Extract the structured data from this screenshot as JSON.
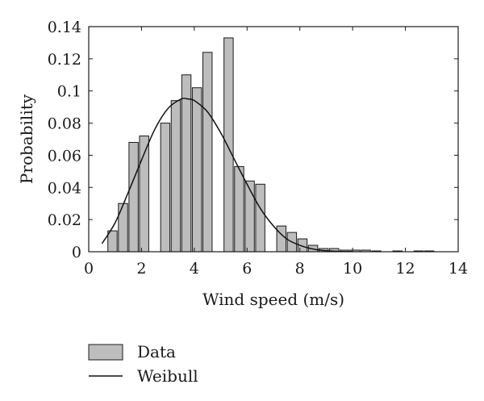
{
  "chart_data": {
    "type": "bar",
    "xlabel": "Wind speed (m/s)",
    "ylabel": "Probability",
    "xlim": [
      0,
      14
    ],
    "ylim": [
      0,
      0.14
    ],
    "x_ticks": [
      "0",
      "2",
      "4",
      "6",
      "8",
      "10",
      "12",
      "14"
    ],
    "y_ticks": [
      "0",
      "0.02",
      "0.04",
      "0.06",
      "0.08",
      "0.1",
      "0.12",
      "0.14"
    ],
    "grid": false,
    "legend_position": "below",
    "bar_width": 0.35,
    "bar_color": "#bdbdbd",
    "line_color": "#111111",
    "series": [
      {
        "name": "Data",
        "kind": "bar",
        "x": [
          0.9,
          1.3,
          1.7,
          2.1,
          2.9,
          3.3,
          3.7,
          4.1,
          4.5,
          5.3,
          5.7,
          6.1,
          6.5,
          7.3,
          7.7,
          8.1,
          8.5,
          8.9,
          9.3,
          9.7,
          10.1,
          10.5,
          10.9,
          11.7,
          12.5,
          12.9
        ],
        "values": [
          0.013,
          0.03,
          0.068,
          0.072,
          0.08,
          0.094,
          0.11,
          0.102,
          0.124,
          0.133,
          0.053,
          0.044,
          0.042,
          0.016,
          0.012,
          0.008,
          0.004,
          0.002,
          0.002,
          0.001,
          0.001,
          0.001,
          0.0005,
          0.0005,
          0.0005,
          0.0005
        ]
      },
      {
        "name": "Weibull",
        "kind": "line",
        "x": [
          0.5,
          1,
          1.5,
          2,
          2.5,
          3,
          3.5,
          3.75,
          4,
          4.5,
          5,
          5.5,
          6,
          6.5,
          7,
          7.5,
          8,
          8.5,
          9,
          9.5,
          10
        ],
        "values": [
          0.005,
          0.018,
          0.037,
          0.057,
          0.076,
          0.089,
          0.095,
          0.095,
          0.094,
          0.087,
          0.074,
          0.058,
          0.042,
          0.027,
          0.016,
          0.008,
          0.004,
          0.0017,
          0.0006,
          0.0002,
          0.0001
        ]
      }
    ]
  }
}
